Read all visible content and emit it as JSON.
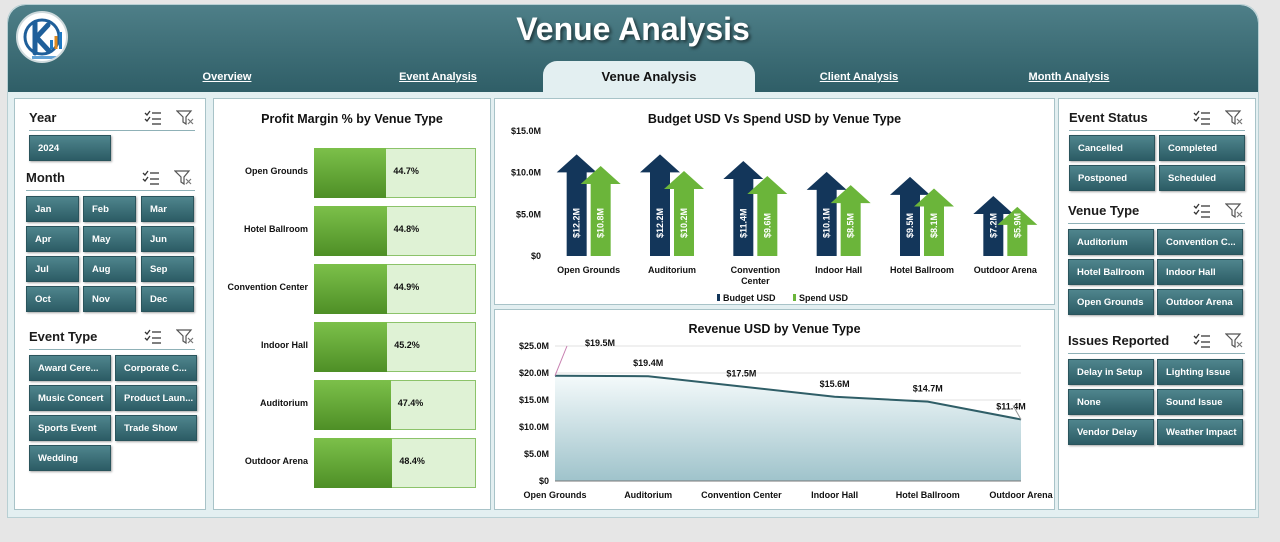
{
  "header": {
    "title": "Venue Analysis"
  },
  "tabs": [
    {
      "label": "Overview"
    },
    {
      "label": "Event Analysis"
    },
    {
      "label": "Venue Analysis"
    },
    {
      "label": "Client Analysis"
    },
    {
      "label": "Month Analysis"
    }
  ],
  "slicers": {
    "year": {
      "title": "Year",
      "items": [
        "2024"
      ]
    },
    "month": {
      "title": "Month",
      "items": [
        "Jan",
        "Feb",
        "Mar",
        "Apr",
        "May",
        "Jun",
        "Jul",
        "Aug",
        "Sep",
        "Oct",
        "Nov",
        "Dec"
      ]
    },
    "event_type": {
      "title": "Event Type",
      "items": [
        "Award Cere...",
        "Corporate C...",
        "Music Concert",
        "Product Laun...",
        "Sports Event",
        "Trade Show",
        "Wedding"
      ]
    },
    "event_status": {
      "title": "Event Status",
      "items": [
        "Cancelled",
        "Completed",
        "Postponed",
        "Scheduled"
      ]
    },
    "venue_type": {
      "title": "Venue Type",
      "items": [
        "Auditorium",
        "Convention C...",
        "Hotel Ballroom",
        "Indoor Hall",
        "Open Grounds",
        "Outdoor Arena"
      ]
    },
    "issues_reported": {
      "title": "Issues Reported",
      "items": [
        "Delay in Setup",
        "Lighting Issue",
        "None",
        "Sound Issue",
        "Vendor Delay",
        "Weather Impact"
      ]
    }
  },
  "icons": {
    "multi_select": "multi-select-icon",
    "clear_filter": "clear-filter-icon"
  },
  "colors": {
    "accent": "#2f5e67",
    "budget": "#13365a",
    "spend": "#6bb53a",
    "bar_fill": "#5fa52e",
    "area_fill": "#cfe3e8",
    "area_line": "#2f5e67"
  },
  "chart_data": [
    {
      "type": "bar",
      "title": "Profit Margin % by Venue Type",
      "orientation": "horizontal",
      "categories": [
        "Open Grounds",
        "Hotel Ballroom",
        "Convention Center",
        "Indoor Hall",
        "Auditorium",
        "Outdoor Arena"
      ],
      "values": [
        44.7,
        44.8,
        44.9,
        45.2,
        47.4,
        48.4
      ],
      "value_labels": [
        "44.7%",
        "44.8%",
        "44.9%",
        "45.2%",
        "47.4%",
        "48.4%"
      ],
      "xlim": [
        0,
        100
      ]
    },
    {
      "type": "bar",
      "title": "Budget USD Vs Spend USD by Venue Type",
      "categories": [
        "Open Grounds",
        "Auditorium",
        "Convention Center",
        "Indoor Hall",
        "Hotel Ballroom",
        "Outdoor Arena"
      ],
      "series": [
        {
          "name": "Budget USD",
          "values": [
            12.2,
            12.2,
            11.4,
            10.1,
            9.5,
            7.2
          ],
          "labels": [
            "$12.2M",
            "$12.2M",
            "$11.4M",
            "$10.1M",
            "$9.5M",
            "$7.2M"
          ]
        },
        {
          "name": "Spend USD",
          "values": [
            10.8,
            10.2,
            9.6,
            8.5,
            8.1,
            5.9
          ],
          "labels": [
            "$10.8M",
            "$10.2M",
            "$9.6M",
            "$8.5M",
            "$8.1M",
            "$5.9M"
          ]
        }
      ],
      "ylim": [
        0,
        15
      ],
      "yticks": [
        "$0",
        "$5.0M",
        "$10.0M",
        "$15.0M"
      ],
      "legend": "bottom"
    },
    {
      "type": "area",
      "title": "Revenue USD by Venue Type",
      "categories": [
        "Open Grounds",
        "Auditorium",
        "Convention Center",
        "Indoor Hall",
        "Hotel Ballroom",
        "Outdoor Arena"
      ],
      "values": [
        19.5,
        19.4,
        17.5,
        15.6,
        14.7,
        11.4
      ],
      "labels": [
        "$19.5M",
        "$19.4M",
        "$17.5M",
        "$15.6M",
        "$14.7M",
        "$11.4M"
      ],
      "ylim": [
        0,
        25
      ],
      "yticks": [
        "$0",
        "$5.0M",
        "$10.0M",
        "$15.0M",
        "$20.0M",
        "$25.0M"
      ]
    }
  ]
}
